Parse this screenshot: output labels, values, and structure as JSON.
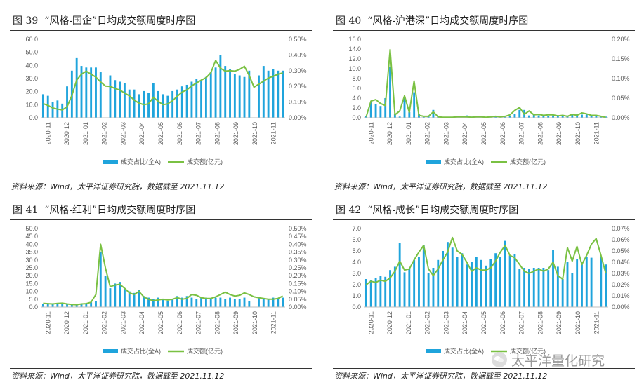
{
  "colors": {
    "bar": "#1fa4dc",
    "line": "#7ac143",
    "axis": "#bfbfbf",
    "text": "#595959"
  },
  "chart_data": [
    {
      "type": "bar+line",
      "figure": "图 39",
      "title": "“风格-国企”日均成交额周度时序图",
      "source": "资料来源：Wind，太平洋证券研究院，数据截至 2021.11.12",
      "legend": [
        "成交占比(全A)",
        "成交额(亿元)"
      ],
      "legend_position": "bottom",
      "x_ticks": [
        "2020-11",
        "2020-12",
        "2021-01",
        "2021-02",
        "2021-03",
        "2021-04",
        "2021-05",
        "2021-06",
        "2021-07",
        "2021-08",
        "2021-09",
        "2021-10",
        "2021-11"
      ],
      "left_axis": {
        "ticks": [
          "0.0",
          "10.0",
          "20.0",
          "30.0",
          "40.0",
          "50.0",
          "60.0"
        ],
        "min": 0,
        "max": 60
      },
      "right_axis": {
        "ticks": [
          "0.00%",
          "0.10%",
          "0.20%",
          "0.30%",
          "0.40%",
          "0.50%"
        ],
        "min": 0,
        "max": 0.5
      },
      "series": [
        {
          "name": "成交占比(全A)",
          "axis": "right",
          "values": [
            0.15,
            0.14,
            0.1,
            0.11,
            0.09,
            0.2,
            0.3,
            0.38,
            0.33,
            0.32,
            0.32,
            0.32,
            0.29,
            0,
            0.27,
            0.24,
            0.23,
            0.22,
            0.18,
            0.18,
            0.15,
            0.17,
            0.16,
            0.22,
            0.17,
            0.15,
            0.14,
            0.17,
            0.18,
            0.2,
            0.21,
            0.23,
            0.25,
            0.24,
            0.26,
            0.29,
            0.32,
            0.4,
            0.33,
            0.31,
            0.28,
            0.27,
            0.26,
            0.3,
            0,
            0.27,
            0.33,
            0.3,
            0.31,
            0.3,
            0.3
          ]
        },
        {
          "name": "成交额(亿元)",
          "axis": "left",
          "values": [
            10.8,
            9.5,
            7.5,
            6.6,
            6.0,
            8.4,
            17.2,
            28.8,
            33.3,
            35.6,
            33.3,
            31.1,
            27.4,
            24.2,
            24.0,
            22.4,
            21.2,
            18.9,
            16.8,
            13.5,
            11.2,
            10.0,
            10.6,
            15.7,
            12.6,
            10.0,
            10.6,
            13.0,
            16.5,
            19.6,
            21.4,
            24.4,
            26.6,
            28.8,
            30.6,
            34.5,
            43.9,
            37.9,
            35.6,
            36.0,
            35.6,
            37.0,
            39.3,
            32.4,
            23.4,
            25.7,
            28.0,
            30.4,
            31.7,
            33.3,
            34.3
          ]
        }
      ]
    },
    {
      "type": "bar+line",
      "figure": "图 40",
      "title": "“风格-沪港深”日均成交额周度时序图",
      "source": "资料来源：Wind，太平洋证券研究院，数据截至 2021.11.12",
      "legend": [
        "成交占比(全A)",
        "成交额(亿元)"
      ],
      "legend_position": "bottom",
      "x_ticks": [
        "2020-11",
        "2020-12",
        "2021-01",
        "2021-02",
        "2021-03",
        "2021-04",
        "2021-05",
        "2021-06",
        "2021-07",
        "2021-08",
        "2021-09",
        "2021-10",
        "2021-11"
      ],
      "left_axis": {
        "ticks": [
          "0.0",
          "2.0",
          "4.0",
          "6.0",
          "8.0",
          "10.0",
          "12.0",
          "14.0",
          "16.0"
        ],
        "min": 0,
        "max": 16
      },
      "right_axis": {
        "ticks": [
          "0.00%",
          "0.05%",
          "0.10%",
          "0.15%",
          "0.20%"
        ],
        "min": 0,
        "max": 0.2
      },
      "series": [
        {
          "name": "成交占比(全A)",
          "axis": "right",
          "values": [
            0.005,
            0.04,
            0.035,
            0.03,
            0.05,
            0.13,
            0.01,
            0.003,
            0.05,
            0.015,
            0.065,
            0.01,
            0.002,
            0.005,
            0.02,
            0.003,
            0.002,
            0.002,
            0.002,
            0.002,
            0.003,
            0.006,
            0.003,
            0.002,
            0.002,
            0.002,
            0.003,
            0.003,
            0.002,
            0.002,
            0.005,
            0.01,
            0.02,
            0.02,
            0.006,
            0.01,
            0.006,
            0.006,
            0.005,
            0.006,
            0.005,
            0.006,
            0.004,
            0.01,
            0.01,
            0.008,
            0.008,
            0.006,
            0.005,
            0.004,
            0.003
          ]
        },
        {
          "name": "成交额(亿元)",
          "axis": "left",
          "values": [
            0.2,
            3.4,
            3.7,
            2.9,
            2.5,
            13.9,
            0.6,
            1.4,
            4.5,
            1.1,
            7.5,
            0.5,
            0.3,
            0.3,
            1.2,
            0.2,
            0.1,
            0.1,
            0.1,
            0.2,
            0.2,
            0.2,
            0.1,
            0.2,
            0.2,
            0.1,
            0.2,
            0.3,
            0.2,
            0.3,
            0.6,
            1.5,
            2.1,
            0.7,
            1.4,
            0.6,
            0.7,
            0.5,
            0.6,
            0.6,
            0.4,
            0.5,
            0.3,
            0.7,
            0.5,
            1.0,
            0.8,
            0.5,
            0.5,
            0.3,
            0.1
          ]
        }
      ]
    },
    {
      "type": "bar+line",
      "figure": "图 41",
      "title": "“风格-红利”日均成交额周度时序图",
      "source": "资料来源：Wind，太平洋证券研究院，数据截至 2021.11.12",
      "legend": [
        "成交占比(全A)",
        "成交额(亿元)"
      ],
      "legend_position": "bottom",
      "x_ticks": [
        "2020-11",
        "2020-12",
        "2021-01",
        "2021-02",
        "2021-03",
        "2021-04",
        "2021-05",
        "2021-06",
        "2021-07",
        "2021-08",
        "2021-09",
        "2021-10",
        "2021-11"
      ],
      "left_axis": {
        "ticks": [
          "0.0",
          "5.0",
          "10.0",
          "15.0",
          "20.0",
          "25.0",
          "30.0",
          "35.0",
          "40.0",
          "45.0",
          "50.0"
        ],
        "min": 0,
        "max": 50
      },
      "right_axis": {
        "ticks": [
          "0.00%",
          "0.05%",
          "0.10%",
          "0.15%",
          "0.20%",
          "0.25%",
          "0.30%",
          "0.35%",
          "0.40%",
          "0.45%",
          "0.50%"
        ],
        "min": 0,
        "max": 0.5
      },
      "series": [
        {
          "name": "成交占比(全A)",
          "axis": "right",
          "values": [
            0.02,
            0.025,
            0.02,
            0.025,
            0.02,
            0.02,
            0.015,
            0.02,
            0.02,
            0.025,
            0.03,
            0.04,
            0.35,
            0.2,
            0.12,
            0.15,
            0.16,
            0.12,
            0.1,
            0.09,
            0.11,
            0.07,
            0.06,
            0.05,
            0.06,
            0.05,
            0.04,
            0.05,
            0.07,
            0.06,
            0.07,
            0.06,
            0.05,
            0.06,
            0.06,
            0.05,
            0.06,
            0.06,
            0.05,
            0.06,
            0.05,
            0.05,
            0.06,
            0.04,
            0,
            0.06,
            0.05,
            0.05,
            0.06,
            0.05,
            0.06
          ]
        },
        {
          "name": "成交额(亿元)",
          "axis": "left",
          "values": [
            2.4,
            2.2,
            2.0,
            2.3,
            2.5,
            2.0,
            1.6,
            1.5,
            2.0,
            2.2,
            3.1,
            8.0,
            40.0,
            25.0,
            13.0,
            14.0,
            14.5,
            12.0,
            9.0,
            8.0,
            10.0,
            6.5,
            5.0,
            4.0,
            4.5,
            5.0,
            4.5,
            5.0,
            6.0,
            5.0,
            5.5,
            8.0,
            7.5,
            6.0,
            5.5,
            5.5,
            6.5,
            8.0,
            9.5,
            8.0,
            7.0,
            7.5,
            9.0,
            8.0,
            6.5,
            6.0,
            5.5,
            5.0,
            5.0,
            5.5,
            7.0
          ]
        }
      ]
    },
    {
      "type": "bar+line",
      "figure": "图 42",
      "title": "“风格-成长”日均成交额周度时序图",
      "source": "资料来源：Wind，太平洋证券研究院，数据截至 2021.11.12",
      "legend": [
        "成交占比(全A)",
        "成交额(亿元)"
      ],
      "legend_position": "bottom",
      "x_ticks": [
        "2020-11",
        "2020-12",
        "2021-01",
        "2021-02",
        "2021-03",
        "2021-04",
        "2021-05",
        "2021-06",
        "2021-07",
        "2021-08",
        "2021-09",
        "2021-10",
        "2021-11"
      ],
      "left_axis": {
        "ticks": [
          "0.0",
          "1.0",
          "2.0",
          "3.0",
          "4.0",
          "5.0",
          "6.0",
          "7.0"
        ],
        "min": 0,
        "max": 7
      },
      "right_axis": {
        "ticks": [
          "0.00%",
          "0.01%",
          "0.02%",
          "0.03%",
          "0.04%",
          "0.05%",
          "0.06%",
          "0.07%"
        ],
        "min": 0,
        "max": 0.07
      },
      "series": [
        {
          "name": "成交占比(全A)",
          "axis": "right",
          "values": [
            0.025,
            0.024,
            0.026,
            0.028,
            0.027,
            0.033,
            0.036,
            0.057,
            0.031,
            0.034,
            0.042,
            0.045,
            0.055,
            0.03,
            0.035,
            0.042,
            0.05,
            0.058,
            0.053,
            0.045,
            0.048,
            0.038,
            0.04,
            0.045,
            0.042,
            0.037,
            0.043,
            0.048,
            0.045,
            0.059,
            0.046,
            0.047,
            0.034,
            0.035,
            0.034,
            0.035,
            0.035,
            0.035,
            0.033,
            0.051,
            0.036,
            0.025,
            0.04,
            0.03,
            0.043,
            0.04,
            0.045,
            0.044,
            0,
            0.045,
            0.038
          ]
        },
        {
          "name": "成交额(亿元)",
          "axis": "left",
          "values": [
            2.0,
            2.3,
            2.2,
            2.4,
            2.3,
            2.6,
            3.2,
            4.1,
            3.3,
            3.4,
            4.2,
            4.9,
            5.5,
            3.4,
            2.8,
            3.4,
            4.2,
            4.9,
            6.2,
            5.0,
            4.7,
            4.0,
            3.2,
            3.5,
            3.3,
            3.3,
            3.5,
            4.1,
            4.9,
            5.5,
            4.6,
            4.4,
            3.8,
            3.2,
            3.0,
            3.2,
            3.4,
            3.2,
            3.4,
            4.0,
            2.8,
            2.5,
            5.3,
            4.1,
            5.4,
            3.8,
            4.6,
            5.6,
            6.1,
            4.6,
            3.0
          ]
        }
      ]
    }
  ],
  "watermark": "太平洋量化研究"
}
